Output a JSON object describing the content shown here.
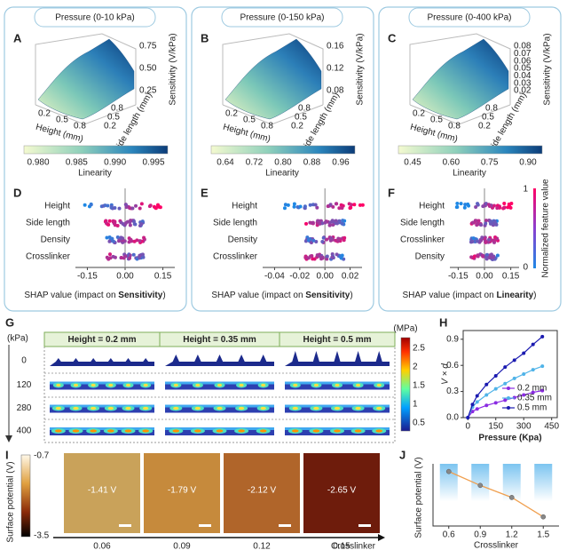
{
  "top_panels": [
    {
      "letter": "A",
      "title": "Pressure  (0-10 kPa)",
      "z_label": "Sensitivity (V/kPa)",
      "z_ticks": [
        "0.75",
        "0.50",
        "0.25"
      ],
      "height_label": "Height (mm)",
      "height_ticks": [
        "0.2",
        "0.5",
        "0.8"
      ],
      "side_label": "Side length (mm)",
      "side_ticks": [
        "0.2",
        "0.5",
        "0.8"
      ],
      "colorbar_ticks": [
        "0.980",
        "0.985",
        "0.990",
        "0.995"
      ],
      "colorbar_label": "Linearity"
    },
    {
      "letter": "B",
      "title": "Pressure  (0-150 kPa)",
      "z_label": "Sensitivity (V/kPa)",
      "z_ticks": [
        "0.16",
        "0.12",
        "0.08"
      ],
      "height_label": "Height (mm)",
      "height_ticks": [
        "0.2",
        "0.5",
        "0.8"
      ],
      "side_label": "Side length (mm)",
      "side_ticks": [
        "0.2",
        "0.5",
        "0.8"
      ],
      "colorbar_ticks": [
        "0.64",
        "0.72",
        "0.80",
        "0.88",
        "0.96"
      ],
      "colorbar_label": "Linearity"
    },
    {
      "letter": "C",
      "title": "Pressure  (0-400 kPa)",
      "z_label": "Sensitivity (V/kPa)",
      "z_ticks": [
        "0.08",
        "0.07",
        "0.06",
        "0.05",
        "0.04",
        "0.03",
        "0.02"
      ],
      "height_label": "Height (mm)",
      "height_ticks": [
        "0.2",
        "0.5",
        "0.8"
      ],
      "side_label": "Side length (mm)",
      "side_ticks": [
        "0.2",
        "0.5",
        "0.8"
      ],
      "colorbar_ticks": [
        "0.45",
        "0.60",
        "0.75",
        "0.90"
      ],
      "colorbar_label": "Linearity"
    }
  ],
  "shap_panels": [
    {
      "letter": "D",
      "features": [
        "Height",
        "Side length",
        "Density",
        "Crosslinker"
      ],
      "x_ticks": [
        "-0.15",
        "0.00",
        "0.15"
      ],
      "x_label": "SHAP value (impact on ",
      "x_label_bold": "Sensitivity",
      "x_label_end": ")"
    },
    {
      "letter": "E",
      "features": [
        "Height",
        "Side length",
        "Density",
        "Crosslinker"
      ],
      "x_ticks": [
        "-0.04",
        "-0.02",
        "0.00",
        "0.02"
      ],
      "x_label": "SHAP value (impact on ",
      "x_label_bold": "Sensitivity",
      "x_label_end": ")"
    },
    {
      "letter": "F",
      "features": [
        "Height",
        "Side length",
        "Crosslinker",
        "Density"
      ],
      "x_ticks": [
        "-0.15",
        "0.00",
        "0.15"
      ],
      "x_label": "SHAP value (impact on ",
      "x_label_bold": "Linearity",
      "x_label_end": ")",
      "feature_colorbar": {
        "high": "1",
        "low": "0",
        "label": "Normalized feature value"
      }
    }
  ],
  "G": {
    "letter": "G",
    "unit": "(kPa)",
    "rows": [
      "0",
      "120",
      "280",
      "400"
    ],
    "columns": [
      "Height = 0.2 mm",
      "Height = 0.35 mm",
      "Height = 0.5 mm"
    ],
    "colorbar_unit": "(MPa)",
    "colorbar_ticks": [
      "2.5",
      "2",
      "1.5",
      "1",
      "0.5"
    ]
  },
  "H": {
    "letter": "H",
    "y_label": "V × d",
    "x_label": "Pressure (Kpa)",
    "xlim": [
      -25,
      480
    ],
    "ylim": [
      0,
      1.0
    ],
    "x_ticks": [
      0,
      150,
      300,
      450
    ],
    "y_ticks": [
      {
        "value": 0,
        "label": "0.0"
      },
      0.3,
      0.6,
      0.9
    ],
    "x": [
      0,
      25,
      50,
      100,
      150,
      200,
      250,
      300,
      350,
      400
    ],
    "series": [
      {
        "name": "0.2 mm",
        "color": "#8a2be2",
        "values": [
          0,
          0.07,
          0.1,
          0.14,
          0.17,
          0.2,
          0.23,
          0.26,
          0.29,
          0.31
        ]
      },
      {
        "name": "0.35 mm",
        "color": "#4fb3e8",
        "values": [
          0,
          0.12,
          0.18,
          0.26,
          0.33,
          0.39,
          0.45,
          0.5,
          0.55,
          0.59
        ]
      },
      {
        "name": "0.5 mm",
        "color": "#1a1ab0",
        "values": [
          0,
          0.15,
          0.25,
          0.38,
          0.48,
          0.58,
          0.66,
          0.74,
          0.84,
          0.93
        ]
      }
    ]
  },
  "I": {
    "letter": "I",
    "y_label": "Surface potential (V)",
    "colorbar_high": "-0.7",
    "colorbar_low": "-3.5",
    "images": [
      {
        "potential": "-1.41 V",
        "crosslinker": "0.06"
      },
      {
        "potential": "-1.79 V",
        "crosslinker": "0.09"
      },
      {
        "potential": "-2.12 V",
        "crosslinker": "0.12"
      },
      {
        "potential": "-2.65 V",
        "crosslinker": "0.15"
      }
    ],
    "x_label": "Crosslinker"
  },
  "J": {
    "letter": "J",
    "y_label": "Surface potential (V)",
    "x_label": "Crosslinker",
    "x": [
      0.6,
      0.9,
      1.2,
      1.5
    ],
    "values": [
      -1.41,
      -1.79,
      -2.12,
      -2.65
    ],
    "xlim": [
      0.45,
      1.65
    ],
    "ylim": [
      -2.9,
      -1.2
    ],
    "x_ticks": [
      0.6,
      0.9,
      1.2,
      1.5
    ]
  }
}
